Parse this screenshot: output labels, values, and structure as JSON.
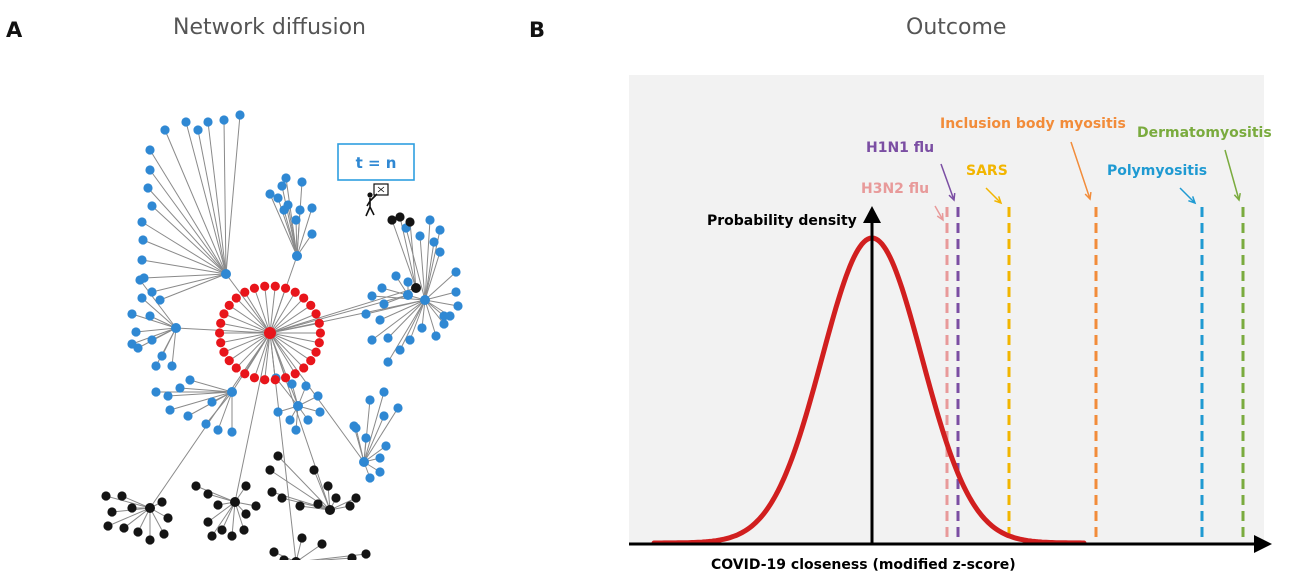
{
  "panel_a": {
    "letter": "A",
    "title": "Network diffusion",
    "time_label": "t = n",
    "walker_icon": "person-carrying-sign-icon",
    "colors": {
      "infected": "#e8151b",
      "reached": "#2f88d3",
      "unreached": "#141414",
      "edge": "#8a8a8a"
    }
  },
  "panel_b": {
    "letter": "B",
    "title": "Outcome",
    "y_axis_label": "Probability density",
    "x_axis_label": "COVID-19 closeness (modified z-score)",
    "curve_color": "#d11f1f",
    "background": "#f2f2f2",
    "diseases": [
      {
        "name": "H3N2 flu",
        "color": "#e89a9a"
      },
      {
        "name": "H1N1 flu",
        "color": "#7b4ea3"
      },
      {
        "name": "SARS",
        "color": "#f2b500"
      },
      {
        "name": "Inclusion body myositis",
        "color": "#f28c3a"
      },
      {
        "name": "Polymyositis",
        "color": "#1f9ad2"
      },
      {
        "name": "Dermatomyositis",
        "color": "#7aab3e"
      }
    ]
  }
}
